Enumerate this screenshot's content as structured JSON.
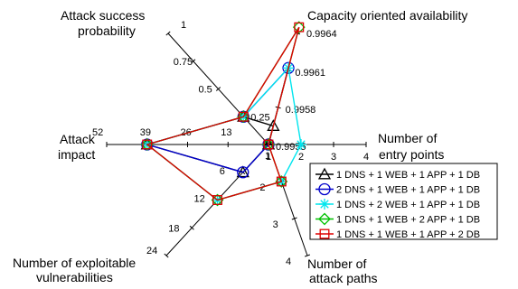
{
  "chart_data": {
    "type": "radar",
    "axes": [
      {
        "id": "capacity",
        "title": [
          "Capacity oriented availability"
        ],
        "ticks": [
          "0.9955",
          "0.9958",
          "0.9961",
          "0.9964"
        ]
      },
      {
        "id": "entry",
        "title": [
          "Number of",
          "entry points"
        ],
        "ticks": [
          "1",
          "2",
          "3",
          "4"
        ]
      },
      {
        "id": "paths",
        "title": [
          "Number of",
          "attack paths"
        ],
        "ticks": [
          "1",
          "2",
          "3",
          "4"
        ]
      },
      {
        "id": "vulns",
        "title": [
          "Number of exploitable",
          "vulnerabilities"
        ],
        "ticks": [
          "6",
          "12",
          "18",
          "24"
        ]
      },
      {
        "id": "impact",
        "title": [
          "Attack",
          "impact"
        ],
        "ticks": [
          "13",
          "26",
          "39",
          "52"
        ]
      },
      {
        "id": "asp",
        "title": [
          "Attack success",
          "probability"
        ],
        "ticks": [
          "0.25",
          "0.5",
          "0.75",
          "1"
        ]
      }
    ],
    "series": [
      {
        "name": "1 DNS + 1 WEB + 1 APP + 1 DB",
        "color": "#000000",
        "marker": "triangle",
        "values": [
          0.99565,
          1,
          1,
          6,
          39,
          0.25
        ]
      },
      {
        "name": "2 DNS + 1 WEB + 1 APP + 1 DB",
        "color": "#0000cc",
        "marker": "circle",
        "values": [
          0.99612,
          1,
          1,
          6,
          39,
          0.25
        ]
      },
      {
        "name": "1 DNS + 2 WEB + 1 APP + 1 DB",
        "color": "#00e5ee",
        "marker": "star",
        "values": [
          0.99612,
          2,
          2,
          12,
          39,
          0.25
        ]
      },
      {
        "name": "1 DNS + 1 WEB + 2 APP + 1 DB",
        "color": "#00c000",
        "marker": "diamond",
        "values": [
          0.99645,
          1,
          2,
          12,
          39,
          0.25
        ]
      },
      {
        "name": "1 DNS + 1 WEB + 1 APP + 2 DB",
        "color": "#dd0000",
        "marker": "square",
        "values": [
          0.99645,
          1,
          2,
          12,
          39,
          0.25
        ]
      }
    ]
  }
}
